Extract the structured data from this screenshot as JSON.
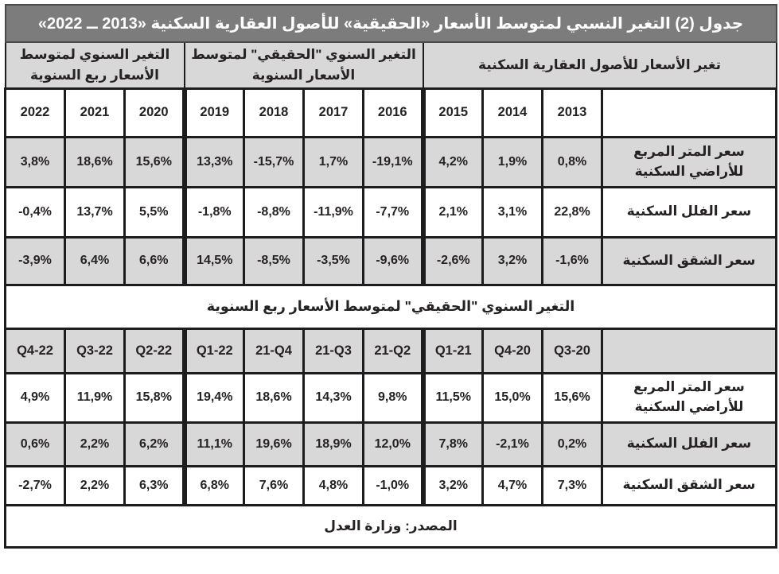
{
  "title": "جدول (2) التغير النسبي لمتوسط الأسعار «الحقيقية» للأصول العقارية السكنية «2013 ــ 2022»",
  "annual": {
    "groups": [
      {
        "label": "التغير السنوي لمتوسط الأسعار ربع السنوية",
        "span": 3
      },
      {
        "label": "التغير السنوي \"الحقيقي\" لمتوسط الأسعار السنوية",
        "span": 4
      },
      {
        "label": "تغير الأسعار للأصول العقارية السكنية",
        "span": 4
      }
    ],
    "columns": [
      "2022",
      "2021",
      "2020",
      "2019",
      "2018",
      "2017",
      "2016",
      "2015",
      "2014",
      "2013"
    ],
    "rows": [
      {
        "label": "سعر المتر المربع للأراضي السكنية",
        "values": [
          "3,8%",
          "18,6%",
          "15,6%",
          "13,3%",
          "-15,7%",
          "1,7%",
          "-19,1%",
          "4,2%",
          "1,9%",
          "0,8%"
        ]
      },
      {
        "label": "سعر الفلل السكنية",
        "values": [
          "-0,4%",
          "13,7%",
          "5,5%",
          "-1,8%",
          "-8,8%",
          "-11,9%",
          "-7,7%",
          "2,1%",
          "3,1%",
          "22,8%"
        ]
      },
      {
        "label": "سعر الشقق السكنية",
        "values": [
          "-3,9%",
          "6,4%",
          "6,6%",
          "14,5%",
          "-8,5%",
          "-3,5%",
          "-9,6%",
          "-2,6%",
          "3,2%",
          "-1,6%"
        ]
      }
    ]
  },
  "quarterly": {
    "section_header": "التغير السنوي \"الحقيقي\" لمتوسط الأسعار ربع السنوية",
    "columns": [
      "Q4-22",
      "Q3-22",
      "Q2-22",
      "Q1-22",
      "21-Q4",
      "21-Q3",
      "21-Q2",
      "Q1-21",
      "Q4-20",
      "Q3-20"
    ],
    "rows": [
      {
        "label": "سعر المتر المربع للأراضي السكنية",
        "values": [
          "4,9%",
          "11,9%",
          "15,8%",
          "19,4%",
          "18,6%",
          "14,3%",
          "9,8%",
          "11,5%",
          "15,0%",
          "15,6%"
        ]
      },
      {
        "label": "سعر الفلل السكنية",
        "values": [
          "0,6%",
          "2,2%",
          "6,2%",
          "11,1%",
          "19,6%",
          "18,9%",
          "12,0%",
          "7,8%",
          "-2,1%",
          "0,2%"
        ]
      },
      {
        "label": "سعر الشقق السكنية",
        "values": [
          "-2,7%",
          "2,2%",
          "6,3%",
          "6,8%",
          "7,6%",
          "4,8%",
          "-1,0%",
          "3,2%",
          "4,7%",
          "7,3%"
        ]
      }
    ]
  },
  "source": "المصدر: وزارة العدل",
  "colors": {
    "title_bg": "#7c7c7c",
    "title_text": "#ffffff",
    "shaded_cell_bg": "#d8d8d8",
    "cell_bg": "#ffffff",
    "border": "#1d1d1f",
    "text": "#262224"
  }
}
